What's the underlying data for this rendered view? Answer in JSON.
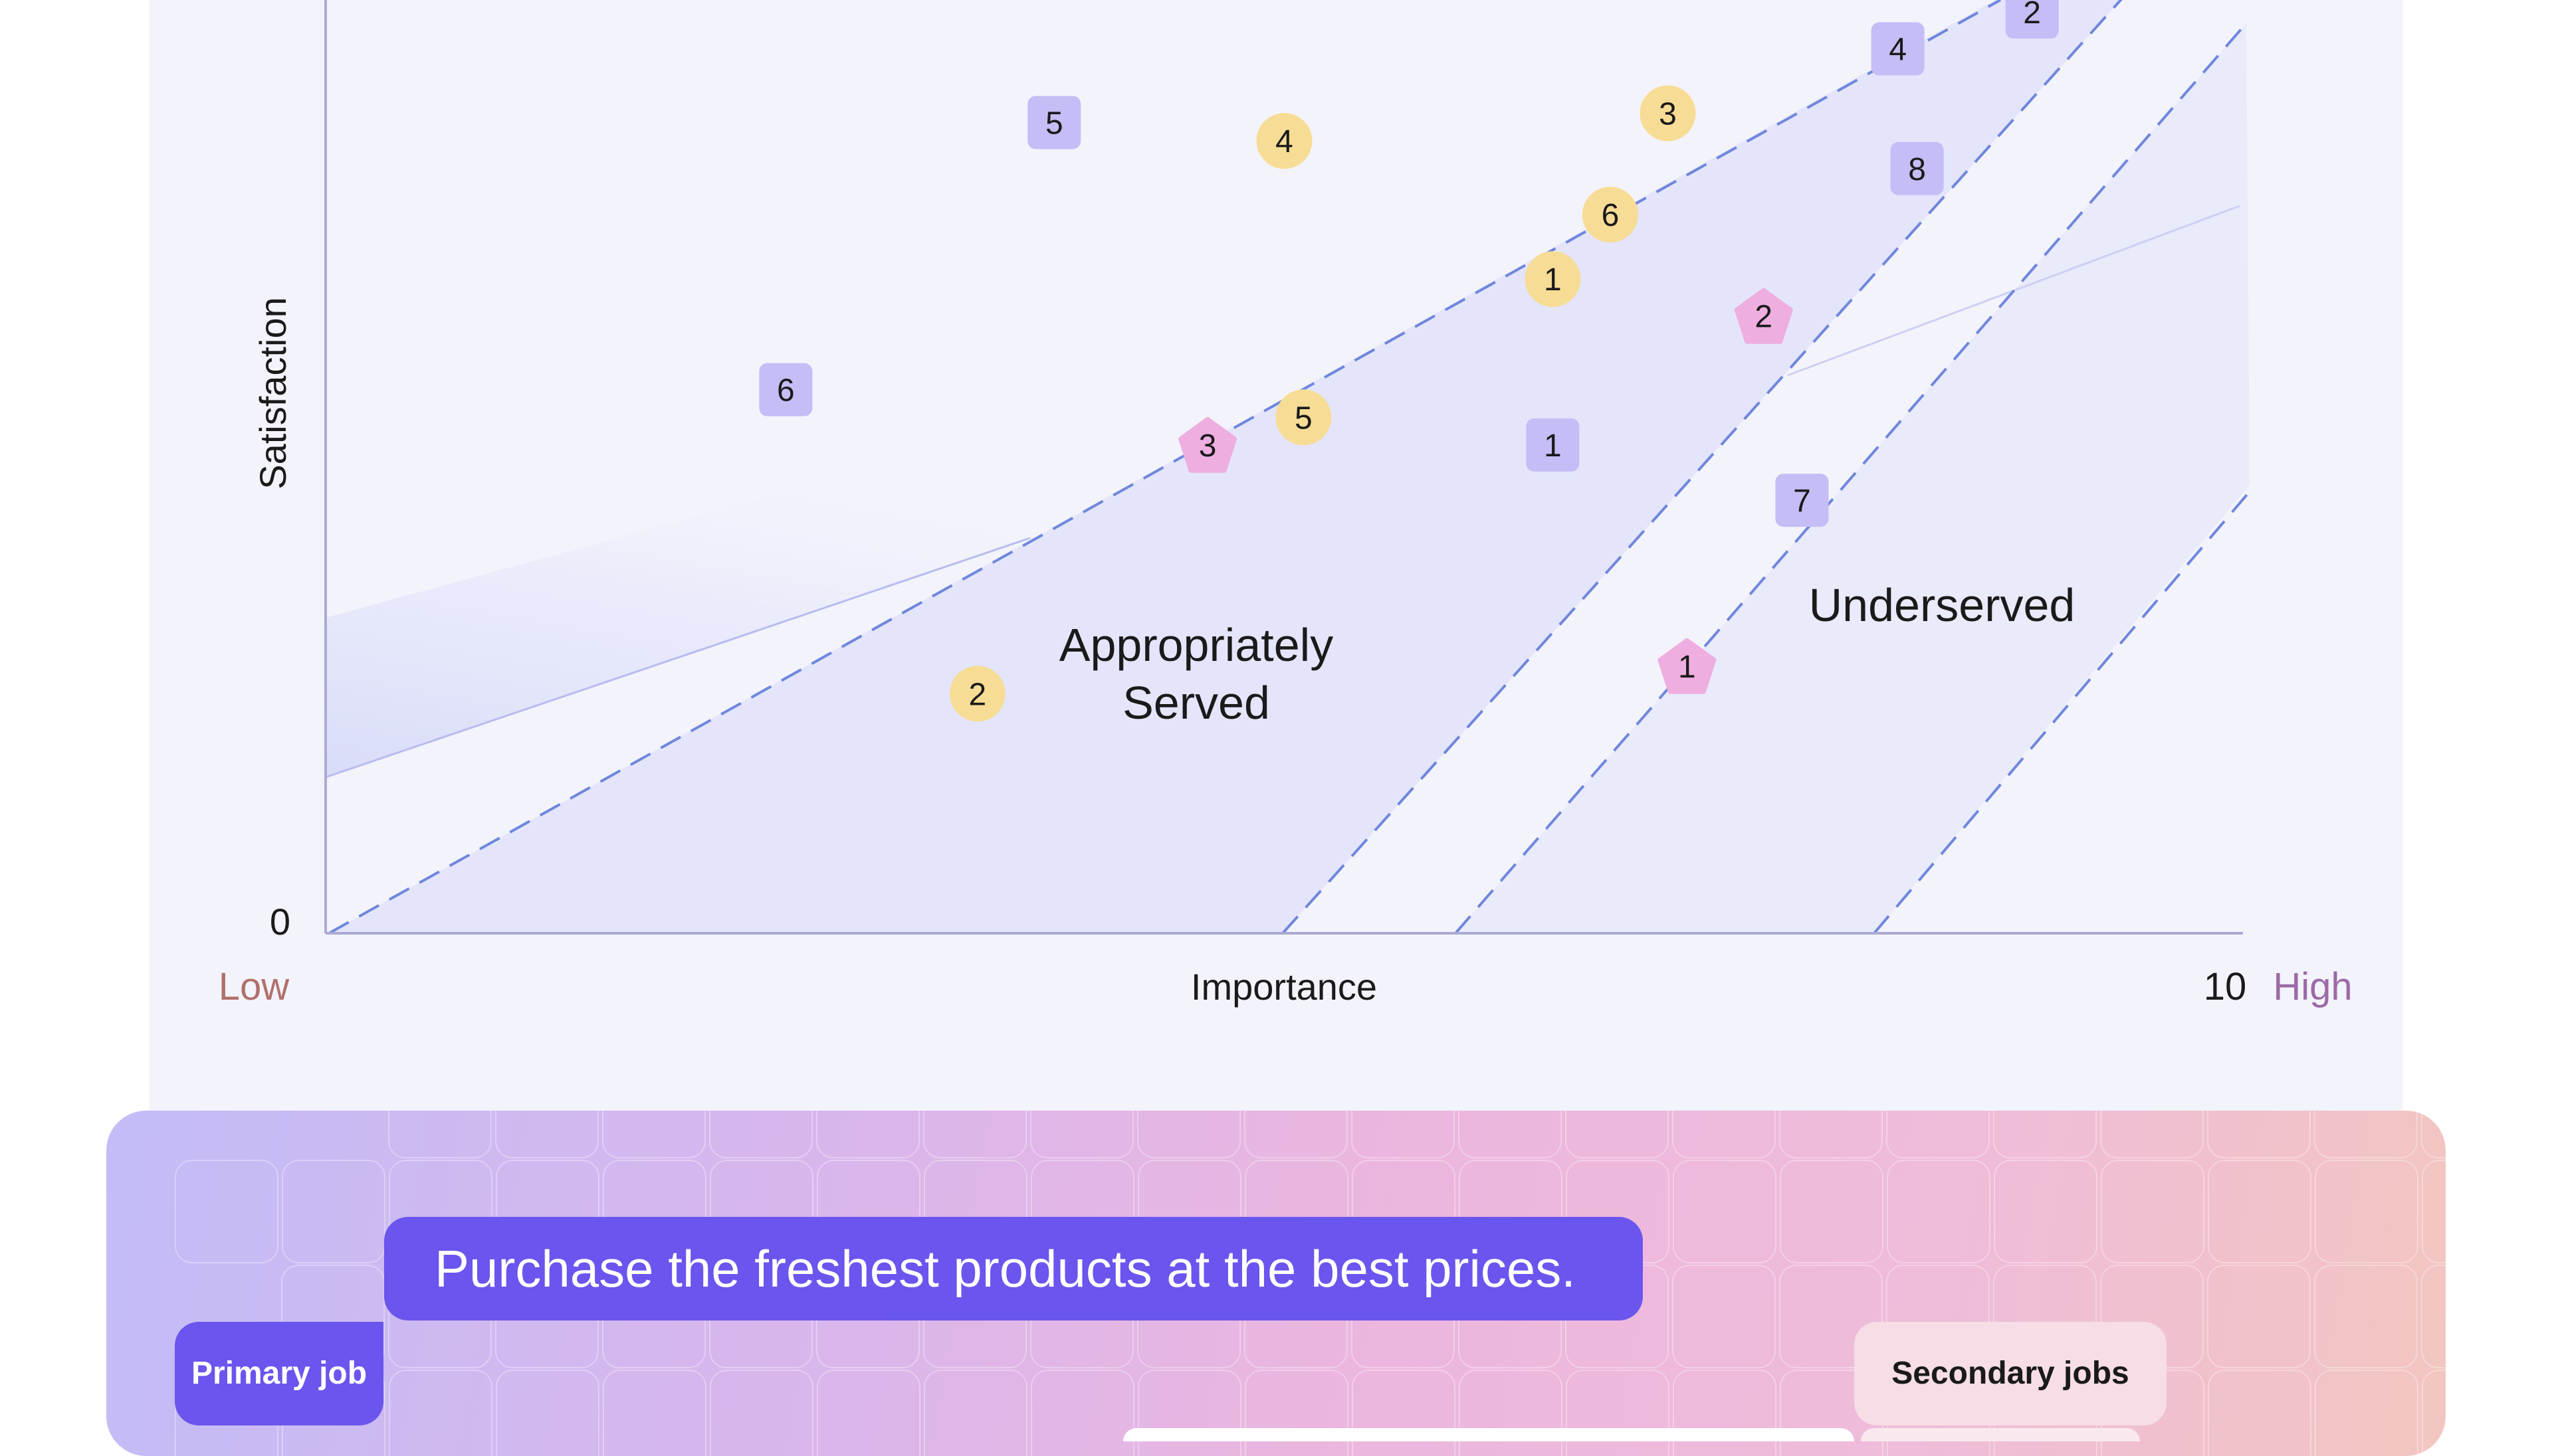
{
  "chart": {
    "y_axis_label": "Satisfaction",
    "x_axis_label": "Importance",
    "y_min_label": "0",
    "x_max_label": "10",
    "x_low_label": "Low",
    "x_high_label": "High",
    "region_appropriately_served": [
      "Appropriately",
      "Served"
    ],
    "region_underserved": "Underserved",
    "colors": {
      "axis": "#aaaad4",
      "dash": "#6f87dc",
      "region_fill": "#e0e2fa",
      "square_marker": "#c5bdf6",
      "circle_marker": "#f7dc95",
      "pentagon_marker": "#efaee0",
      "low_label": "#b0706c",
      "high_label": "#9b6aa6"
    }
  },
  "chart_data": {
    "type": "scatter",
    "xlabel": "Importance",
    "ylabel": "Satisfaction",
    "xlim": [
      0,
      10
    ],
    "series": [
      {
        "marker": "square",
        "points": [
          {
            "label": "1",
            "x": 6.4,
            "y": 5.3
          },
          {
            "label": "2",
            "x": 8.9,
            "y": 10.0
          },
          {
            "label": "4",
            "x": 8.2,
            "y": 9.6
          },
          {
            "label": "5",
            "x": 3.8,
            "y": 8.8
          },
          {
            "label": "6",
            "x": 2.4,
            "y": 5.9
          },
          {
            "label": "7",
            "x": 7.7,
            "y": 4.7
          },
          {
            "label": "8",
            "x": 8.3,
            "y": 8.3
          }
        ]
      },
      {
        "marker": "circle",
        "points": [
          {
            "label": "1",
            "x": 6.4,
            "y": 7.1
          },
          {
            "label": "2",
            "x": 3.4,
            "y": 2.6
          },
          {
            "label": "3",
            "x": 7.0,
            "y": 8.9
          },
          {
            "label": "4",
            "x": 5.0,
            "y": 8.6
          },
          {
            "label": "5",
            "x": 5.1,
            "y": 5.6
          },
          {
            "label": "6",
            "x": 6.7,
            "y": 7.8
          }
        ]
      },
      {
        "marker": "pentagon",
        "points": [
          {
            "label": "1",
            "x": 7.1,
            "y": 2.9
          },
          {
            "label": "2",
            "x": 7.5,
            "y": 6.7
          },
          {
            "label": "3",
            "x": 4.6,
            "y": 5.3
          }
        ]
      }
    ]
  },
  "jobs": {
    "primary_job_text": "Purchase the freshest products at the best prices.",
    "primary_job_badge": "Primary job",
    "secondary_jobs_badge": "Secondary jobs"
  }
}
